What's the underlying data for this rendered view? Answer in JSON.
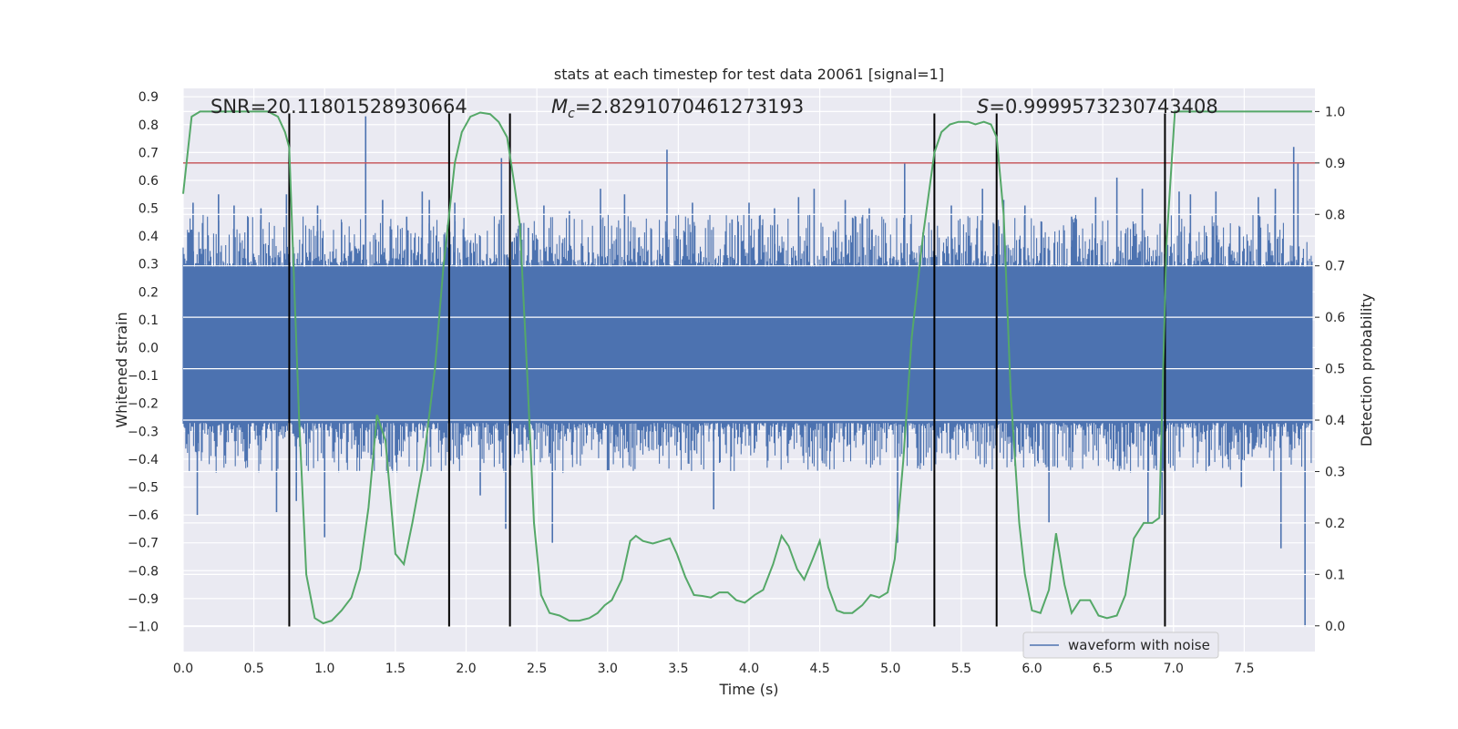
{
  "chart_data": {
    "type": "line",
    "title": "stats at each timestep for test data 20061 [signal=1]",
    "xlabel": "Time (s)",
    "ylabel_left": "Whitened strain",
    "ylabel_right": "Detection probability",
    "xlim": [
      0.0,
      8.0
    ],
    "ylim_left": [
      -1.09,
      0.93
    ],
    "ylim_right": [
      -0.05,
      1.045
    ],
    "x_ticks": [
      "0.0",
      "0.5",
      "1.0",
      "1.5",
      "2.0",
      "2.5",
      "3.0",
      "3.5",
      "4.0",
      "4.5",
      "5.0",
      "5.5",
      "6.0",
      "6.5",
      "7.0",
      "7.5"
    ],
    "y_ticks_left": [
      "0.9",
      "0.8",
      "0.7",
      "0.6",
      "0.5",
      "0.4",
      "0.3",
      "0.2",
      "0.1",
      "0.0",
      "−0.1",
      "−0.2",
      "−0.3",
      "−0.4",
      "−0.5",
      "−0.6",
      "−0.7",
      "−0.8",
      "−0.9",
      "−1.0"
    ],
    "y_ticks_right": [
      "1.0",
      "0.9",
      "0.8",
      "0.7",
      "0.6",
      "0.5",
      "0.4",
      "0.3",
      "0.2",
      "0.1",
      "0.0"
    ],
    "annotations": {
      "snr": "SNR=20.11801528930664",
      "mc_symbol": "M",
      "mc_sub": "c",
      "mc_value": "=2.8291070461273193",
      "s_symbol": "S",
      "s_value": "=0.9999573230743408"
    },
    "legend": {
      "label": "waveform with noise",
      "loc": "lower right"
    },
    "threshold": {
      "value": 0.9,
      "axis": "right",
      "color": "#c44e52"
    },
    "vlines": {
      "x": [
        0.75,
        1.88,
        2.31,
        5.31,
        5.75,
        6.94
      ],
      "ymin": -1.0,
      "ymax": 0.84,
      "color": "#000000"
    },
    "waveform": {
      "name": "waveform with noise",
      "color": "#4c72b0",
      "x_range": [
        0.0,
        7.98
      ],
      "core_band": [
        -0.27,
        0.29
      ],
      "typical_range": [
        -0.45,
        0.48
      ],
      "peaks": [
        [
          0.07,
          0.52
        ],
        [
          0.1,
          -0.6
        ],
        [
          0.25,
          0.55
        ],
        [
          0.36,
          0.51
        ],
        [
          0.55,
          0.5
        ],
        [
          0.66,
          -0.59
        ],
        [
          0.73,
          0.55
        ],
        [
          0.8,
          -0.55
        ],
        [
          0.95,
          0.51
        ],
        [
          1.0,
          -0.68
        ],
        [
          1.12,
          0.45
        ],
        [
          1.29,
          0.83
        ],
        [
          1.41,
          0.53
        ],
        [
          1.58,
          0.47
        ],
        [
          1.69,
          0.56
        ],
        [
          1.74,
          0.53
        ],
        [
          1.92,
          0.52
        ],
        [
          2.1,
          -0.53
        ],
        [
          2.25,
          0.68
        ],
        [
          2.28,
          -0.65
        ],
        [
          2.44,
          0.43
        ],
        [
          2.55,
          0.51
        ],
        [
          2.61,
          -0.7
        ],
        [
          2.73,
          0.49
        ],
        [
          2.95,
          0.57
        ],
        [
          3.12,
          0.55
        ],
        [
          3.42,
          0.71
        ],
        [
          3.6,
          0.52
        ],
        [
          3.75,
          -0.58
        ],
        [
          3.88,
          0.46
        ],
        [
          4.0,
          0.52
        ],
        [
          4.18,
          0.5
        ],
        [
          4.35,
          0.54
        ],
        [
          4.46,
          0.57
        ],
        [
          4.68,
          0.53
        ],
        [
          4.85,
          0.5
        ],
        [
          5.05,
          -0.7
        ],
        [
          5.1,
          0.66
        ],
        [
          5.43,
          0.51
        ],
        [
          5.65,
          0.57
        ],
        [
          5.8,
          0.53
        ],
        [
          5.95,
          0.51
        ],
        [
          6.12,
          -0.63
        ],
        [
          6.28,
          0.47
        ],
        [
          6.45,
          0.54
        ],
        [
          6.6,
          0.61
        ],
        [
          6.78,
          0.57
        ],
        [
          6.82,
          -0.63
        ],
        [
          6.92,
          -0.6
        ],
        [
          7.04,
          0.56
        ],
        [
          7.12,
          0.55
        ],
        [
          7.3,
          0.56
        ],
        [
          7.48,
          -0.5
        ],
        [
          7.6,
          0.54
        ],
        [
          7.72,
          0.57
        ],
        [
          7.76,
          -0.72
        ],
        [
          7.85,
          0.72
        ],
        [
          7.88,
          0.66
        ],
        [
          7.93,
          -1.0
        ]
      ]
    },
    "detection_probability": {
      "name": "detection probability",
      "color": "#55a868",
      "points": [
        [
          0.0,
          0.84
        ],
        [
          0.06,
          0.99
        ],
        [
          0.12,
          1.0
        ],
        [
          0.2,
          1.0
        ],
        [
          0.3,
          1.0
        ],
        [
          0.4,
          1.0
        ],
        [
          0.5,
          1.0
        ],
        [
          0.6,
          1.0
        ],
        [
          0.67,
          0.99
        ],
        [
          0.72,
          0.96
        ],
        [
          0.75,
          0.93
        ],
        [
          0.78,
          0.7
        ],
        [
          0.82,
          0.4
        ],
        [
          0.87,
          0.1
        ],
        [
          0.93,
          0.015
        ],
        [
          0.99,
          0.005
        ],
        [
          1.05,
          0.01
        ],
        [
          1.12,
          0.03
        ],
        [
          1.19,
          0.055
        ],
        [
          1.25,
          0.11
        ],
        [
          1.31,
          0.23
        ],
        [
          1.37,
          0.41
        ],
        [
          1.43,
          0.36
        ],
        [
          1.5,
          0.14
        ],
        [
          1.56,
          0.12
        ],
        [
          1.62,
          0.2
        ],
        [
          1.7,
          0.32
        ],
        [
          1.78,
          0.5
        ],
        [
          1.84,
          0.7
        ],
        [
          1.92,
          0.9
        ],
        [
          1.97,
          0.96
        ],
        [
          2.03,
          0.99
        ],
        [
          2.1,
          0.998
        ],
        [
          2.17,
          0.995
        ],
        [
          2.23,
          0.98
        ],
        [
          2.29,
          0.95
        ],
        [
          2.34,
          0.86
        ],
        [
          2.38,
          0.78
        ],
        [
          2.43,
          0.5
        ],
        [
          2.48,
          0.2
        ],
        [
          2.53,
          0.06
        ],
        [
          2.59,
          0.025
        ],
        [
          2.66,
          0.02
        ],
        [
          2.73,
          0.01
        ],
        [
          2.8,
          0.01
        ],
        [
          2.87,
          0.015
        ],
        [
          2.93,
          0.025
        ],
        [
          2.98,
          0.04
        ],
        [
          3.03,
          0.05
        ],
        [
          3.1,
          0.09
        ],
        [
          3.16,
          0.165
        ],
        [
          3.2,
          0.175
        ],
        [
          3.25,
          0.165
        ],
        [
          3.32,
          0.16
        ],
        [
          3.38,
          0.165
        ],
        [
          3.44,
          0.17
        ],
        [
          3.49,
          0.14
        ],
        [
          3.55,
          0.095
        ],
        [
          3.61,
          0.06
        ],
        [
          3.67,
          0.058
        ],
        [
          3.73,
          0.055
        ],
        [
          3.79,
          0.065
        ],
        [
          3.85,
          0.065
        ],
        [
          3.91,
          0.05
        ],
        [
          3.97,
          0.045
        ],
        [
          4.04,
          0.06
        ],
        [
          4.1,
          0.07
        ],
        [
          4.17,
          0.12
        ],
        [
          4.23,
          0.175
        ],
        [
          4.28,
          0.155
        ],
        [
          4.34,
          0.11
        ],
        [
          4.39,
          0.09
        ],
        [
          4.45,
          0.13
        ],
        [
          4.5,
          0.165
        ],
        [
          4.56,
          0.075
        ],
        [
          4.62,
          0.03
        ],
        [
          4.67,
          0.025
        ],
        [
          4.73,
          0.025
        ],
        [
          4.8,
          0.04
        ],
        [
          4.86,
          0.06
        ],
        [
          4.92,
          0.055
        ],
        [
          4.98,
          0.065
        ],
        [
          5.03,
          0.13
        ],
        [
          5.09,
          0.32
        ],
        [
          5.15,
          0.56
        ],
        [
          5.23,
          0.76
        ],
        [
          5.31,
          0.92
        ],
        [
          5.36,
          0.96
        ],
        [
          5.42,
          0.975
        ],
        [
          5.48,
          0.98
        ],
        [
          5.55,
          0.98
        ],
        [
          5.6,
          0.975
        ],
        [
          5.66,
          0.98
        ],
        [
          5.71,
          0.975
        ],
        [
          5.75,
          0.95
        ],
        [
          5.8,
          0.8
        ],
        [
          5.85,
          0.45
        ],
        [
          5.91,
          0.2
        ],
        [
          5.95,
          0.1
        ],
        [
          6.0,
          0.03
        ],
        [
          6.06,
          0.025
        ],
        [
          6.12,
          0.07
        ],
        [
          6.17,
          0.18
        ],
        [
          6.23,
          0.08
        ],
        [
          6.28,
          0.025
        ],
        [
          6.34,
          0.05
        ],
        [
          6.41,
          0.05
        ],
        [
          6.47,
          0.02
        ],
        [
          6.53,
          0.015
        ],
        [
          6.6,
          0.02
        ],
        [
          6.66,
          0.06
        ],
        [
          6.72,
          0.17
        ],
        [
          6.79,
          0.2
        ],
        [
          6.85,
          0.2
        ],
        [
          6.9,
          0.21
        ],
        [
          6.95,
          0.74
        ],
        [
          7.01,
          1.0
        ],
        [
          7.07,
          1.0
        ],
        [
          7.5,
          1.0
        ],
        [
          7.98,
          1.0
        ]
      ]
    }
  }
}
